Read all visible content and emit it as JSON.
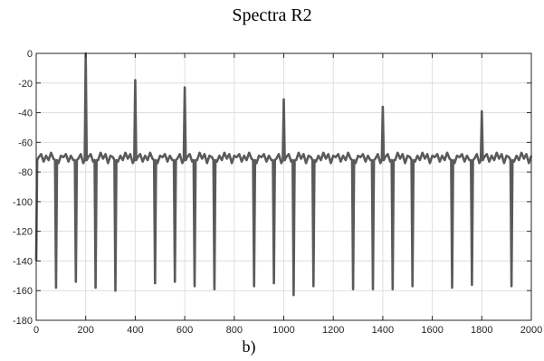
{
  "chart_data": {
    "type": "line",
    "title": "Spectra R2",
    "subcaption": "b)",
    "xlabel": "",
    "ylabel": "",
    "xlim": [
      0,
      2000
    ],
    "ylim": [
      -180,
      0
    ],
    "xticks": [
      0,
      200,
      400,
      600,
      800,
      1000,
      1200,
      1400,
      1600,
      1800,
      2000
    ],
    "yticks": [
      0,
      -20,
      -40,
      -60,
      -80,
      -100,
      -120,
      -140,
      -160,
      -180
    ],
    "grid": true,
    "line_color": "#5a5a5a",
    "series": [
      {
        "baseline": -70,
        "peaks": [
          {
            "x": 200,
            "y": 0
          },
          {
            "x": 400,
            "y": -18
          },
          {
            "x": 600,
            "y": -23
          },
          {
            "x": 1000,
            "y": -31
          },
          {
            "x": 1400,
            "y": -36
          },
          {
            "x": 1800,
            "y": -39
          }
        ],
        "dips": [
          {
            "x": 80,
            "y": -158
          },
          {
            "x": 160,
            "y": -154
          },
          {
            "x": 240,
            "y": -158
          },
          {
            "x": 320,
            "y": -160
          },
          {
            "x": 480,
            "y": -155
          },
          {
            "x": 560,
            "y": -154
          },
          {
            "x": 640,
            "y": -157
          },
          {
            "x": 720,
            "y": -159
          },
          {
            "x": 880,
            "y": -157
          },
          {
            "x": 960,
            "y": -155
          },
          {
            "x": 1040,
            "y": -163
          },
          {
            "x": 1120,
            "y": -157
          },
          {
            "x": 1280,
            "y": -159
          },
          {
            "x": 1360,
            "y": -159
          },
          {
            "x": 1440,
            "y": -159
          },
          {
            "x": 1520,
            "y": -157
          },
          {
            "x": 1680,
            "y": -158
          },
          {
            "x": 1760,
            "y": -156
          },
          {
            "x": 1920,
            "y": -157
          }
        ]
      }
    ]
  }
}
